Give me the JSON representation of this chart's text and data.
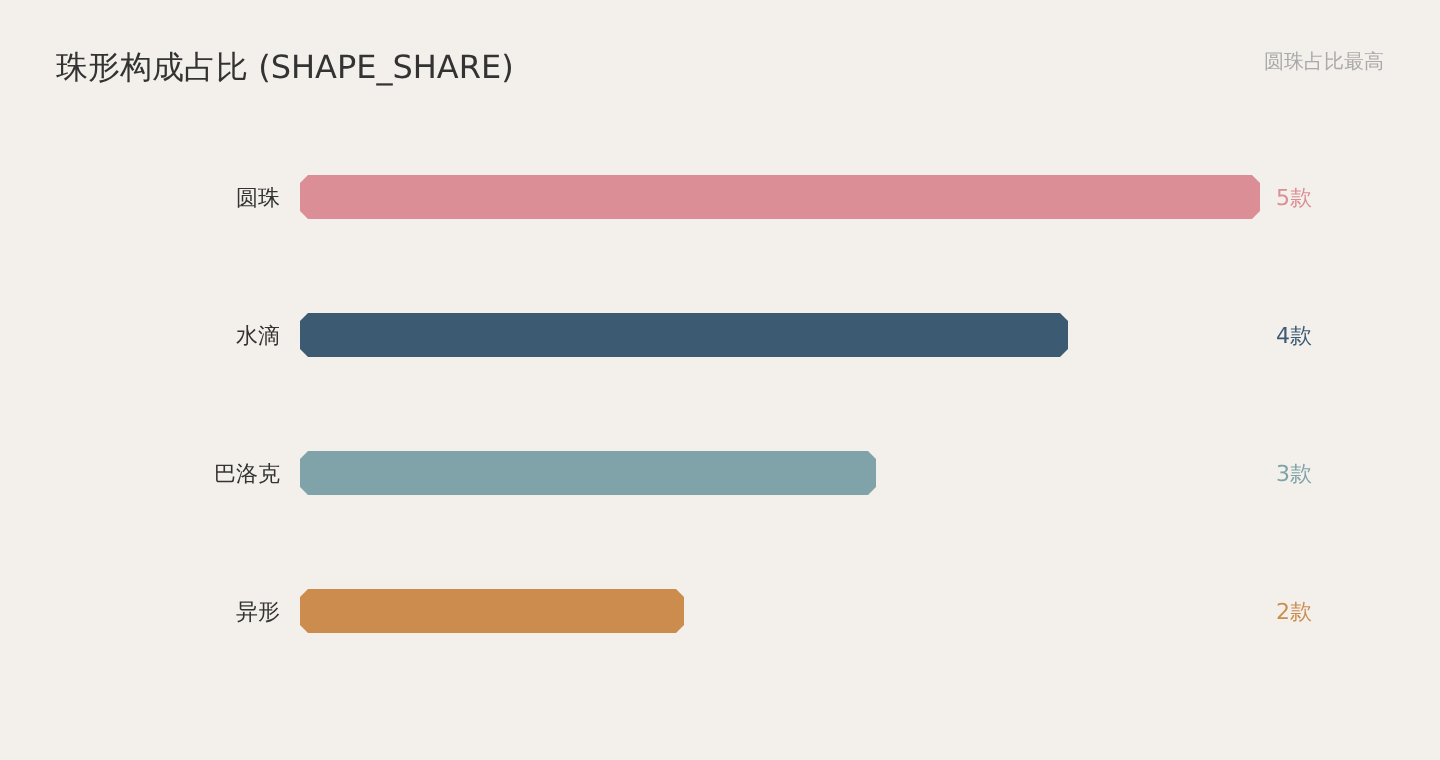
{
  "chart_data": {
    "type": "bar",
    "orientation": "horizontal",
    "title": "珠形构成占比 (SHAPE_SHARE)",
    "annotations": [
      "圆珠占比最高"
    ],
    "categories": [
      "圆珠",
      "水滴",
      "巴洛克",
      "异形"
    ],
    "values": [
      5,
      4,
      3,
      2
    ],
    "colors": [
      "#db8e96",
      "#3d5a73",
      "#7fa3a8",
      "#cc8c4e"
    ],
    "value_labels": [
      "5款",
      "4款",
      "3款",
      "2款"
    ]
  }
}
